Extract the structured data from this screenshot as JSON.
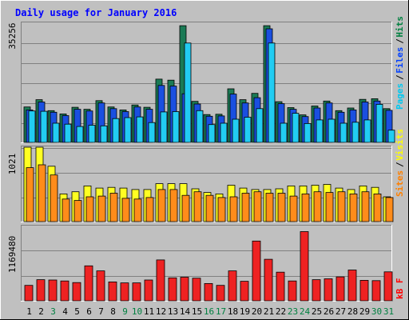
{
  "chart_data": [
    {
      "type": "bar",
      "title": "Daily usage for January 2016",
      "categories": [
        "1",
        "2",
        "3",
        "4",
        "5",
        "6",
        "7",
        "8",
        "9",
        "10",
        "11",
        "12",
        "13",
        "14",
        "15",
        "16",
        "17",
        "18",
        "19",
        "20",
        "21",
        "22",
        "23",
        "24",
        "25",
        "26",
        "27",
        "28",
        "29",
        "30",
        "31"
      ],
      "weekend_days": [
        "3",
        "9",
        "10",
        "16",
        "17",
        "23",
        "24",
        "30",
        "31"
      ],
      "y_tick_label": "35256",
      "ylim": [
        0,
        36000
      ],
      "grid": true,
      "legend_position": "right",
      "legend": [
        {
          "label": "Pages",
          "color": "#00c8f0"
        },
        {
          "label": "Files",
          "color": "#0040ff"
        },
        {
          "label": "Hits",
          "color": "#008040"
        }
      ],
      "series": [
        {
          "name": "Hits",
          "color": "#1a7a55",
          "values": [
            10700,
            12900,
            9600,
            8600,
            10600,
            10000,
            12600,
            10700,
            9800,
            11300,
            10600,
            19100,
            18800,
            35256,
            12400,
            8400,
            8500,
            16200,
            12900,
            14800,
            35256,
            12300,
            10500,
            8300,
            11000,
            12500,
            9600,
            10400,
            13000,
            13200,
            10200
          ]
        },
        {
          "name": "Files",
          "color": "#1a4fe0",
          "values": [
            9800,
            12200,
            9100,
            8100,
            10000,
            9500,
            11900,
            10200,
            9300,
            10700,
            10000,
            17200,
            17000,
            14700,
            11600,
            7900,
            8000,
            14600,
            11900,
            13500,
            34300,
            11700,
            10000,
            7800,
            10400,
            11900,
            9100,
            9800,
            12200,
            12500,
            9700
          ]
        },
        {
          "name": "Pages",
          "color": "#22ccf2",
          "values": [
            9500,
            9400,
            5800,
            5500,
            4800,
            5200,
            5000,
            7200,
            7500,
            7700,
            6000,
            9200,
            9300,
            30000,
            9600,
            5400,
            5800,
            7000,
            7600,
            10200,
            30000,
            5800,
            8800,
            5700,
            6800,
            7000,
            5800,
            6100,
            6800,
            11500,
            3700
          ]
        }
      ]
    },
    {
      "type": "bar",
      "y_tick_label": "1021",
      "ylim": [
        0,
        1021
      ],
      "grid": true,
      "legend_position": "right",
      "legend": [
        {
          "label": "Sites",
          "color": "#ff8000"
        },
        {
          "label": "Visits",
          "color": "#ffff00"
        }
      ],
      "series": [
        {
          "name": "Visits",
          "color": "#ffff22",
          "values": [
            1021,
            1021,
            760,
            380,
            410,
            490,
            460,
            470,
            460,
            440,
            440,
            520,
            520,
            520,
            450,
            400,
            380,
            500,
            460,
            440,
            440,
            450,
            490,
            490,
            500,
            510,
            460,
            440,
            490,
            470,
            340
          ]
        },
        {
          "name": "Sites",
          "color": "#ff8c1a",
          "values": [
            740,
            780,
            640,
            310,
            290,
            340,
            350,
            390,
            320,
            310,
            330,
            440,
            440,
            360,
            410,
            360,
            330,
            340,
            390,
            410,
            390,
            390,
            350,
            380,
            410,
            400,
            410,
            380,
            410,
            380,
            330
          ]
        }
      ]
    },
    {
      "type": "bar",
      "y_tick_label": "1169480",
      "ylim": [
        0,
        1169480
      ],
      "grid": true,
      "legend_position": "right",
      "legend": [
        {
          "label": "kB F",
          "color": "#ff0000"
        }
      ],
      "series": [
        {
          "name": "kB F",
          "color": "#ee2222",
          "values": [
            245000,
            335000,
            330000,
            315000,
            290000,
            555000,
            475000,
            300000,
            285000,
            285000,
            330000,
            650000,
            365000,
            375000,
            360000,
            275000,
            245000,
            475000,
            310000,
            950000,
            660000,
            455000,
            315000,
            1100000,
            335000,
            350000,
            380000,
            490000,
            325000,
            320000,
            460000
          ]
        }
      ]
    }
  ]
}
